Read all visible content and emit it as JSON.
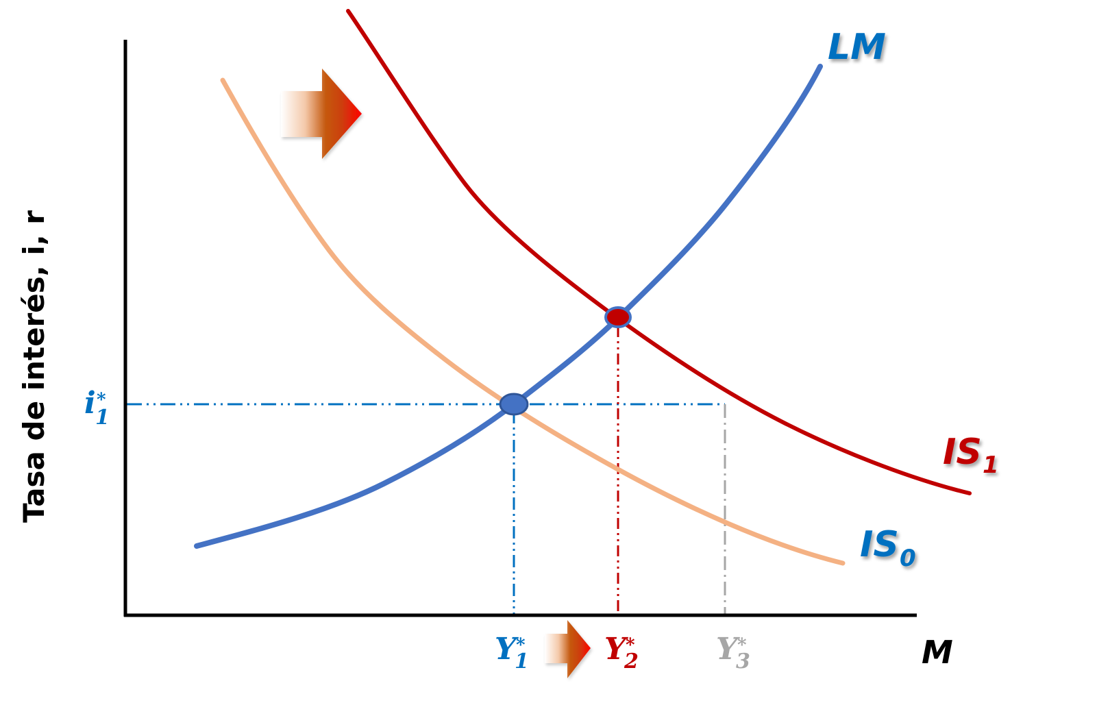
{
  "diagram": {
    "y_axis_label": "Tasa de interés, i, r",
    "x_axis_label": "M",
    "curves": {
      "lm": {
        "label": "LM",
        "label_color": "#0070C0",
        "line_color": "#4472C4"
      },
      "is0": {
        "label": "IS",
        "subscript": "0",
        "label_color": "#0070C0",
        "line_color": "#F4B183"
      },
      "is1": {
        "label": "IS",
        "subscript": "1",
        "label_color": "#C00000",
        "line_color": "#C00000"
      }
    },
    "interest_rate": {
      "symbol": "i",
      "superscript": "*",
      "subscript": "1",
      "color": "#0070C0"
    },
    "outputs": [
      {
        "symbol": "Y",
        "superscript": "*",
        "subscript": "1",
        "color": "#0070C0"
      },
      {
        "symbol": "Y",
        "superscript": "*",
        "subscript": "2",
        "color": "#C00000"
      },
      {
        "symbol": "Y",
        "superscript": "*",
        "subscript": "3",
        "color": "#A6A6A6"
      }
    ],
    "equilibrium_points": [
      {
        "fill": "#4472C4"
      },
      {
        "fill": "#C00000"
      }
    ],
    "shift_arrows": [
      {
        "icon": "arrow-right-icon"
      },
      {
        "icon": "arrow-right-icon"
      }
    ]
  }
}
